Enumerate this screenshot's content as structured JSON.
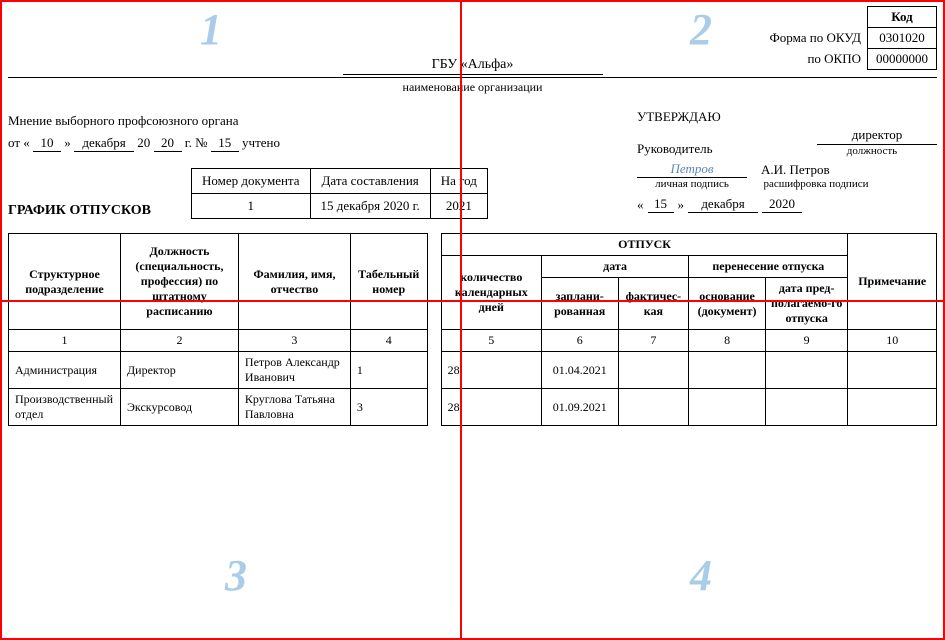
{
  "codes": {
    "header": "Код",
    "okud_label": "Форма по ОКУД",
    "okud": "0301020",
    "okpo_label": "по ОКПО",
    "okpo": "00000000"
  },
  "org": {
    "name": "ГБУ «Альфа»",
    "caption": "наименование организации"
  },
  "union": {
    "title": "Мнение выборного профсоюзного органа",
    "prefix_ot": "от",
    "q1": "«",
    "day": "10",
    "q2": "»",
    "month": "декабря",
    "y20": "20",
    "year": "20",
    "g": "г.",
    "no": "№",
    "num": "15",
    "uchteno": "учтено"
  },
  "approve": {
    "title": "УТВЕРЖДАЮ",
    "ruk": "Руководитель",
    "post": "директор",
    "post_caption": "должность",
    "sign": "Петров",
    "sign_caption": "личная подпись",
    "fio": "А.И. Петров",
    "fio_caption": "расшифровка подписи",
    "q1": "«",
    "day": "15",
    "q2": "»",
    "month": "декабря",
    "year": "2020"
  },
  "doc": {
    "title": "ГРАФИК ОТПУСКОВ",
    "h_num": "Номер документа",
    "h_date": "Дата составления",
    "h_year": "На год",
    "num": "1",
    "date": "15 декабря 2020 г.",
    "year": "2021"
  },
  "table": {
    "h_unit": "Структурное подразделение",
    "h_post": "Должность (специальность, профессия) по штатному расписанию",
    "h_fio": "Фамилия, имя, отчество",
    "h_tab": "Табельный номер",
    "h_vac": "ОТПУСК",
    "h_days": "количество календарных дней",
    "h_date": "дата",
    "h_transfer": "перенесение отпуска",
    "h_plan": "заплани-рованная",
    "h_fact": "фактичес-кая",
    "h_basis": "основание (документ)",
    "h_newdate": "дата пред-полагаемо-го отпуска",
    "h_note": "Примечание",
    "n1": "1",
    "n2": "2",
    "n3": "3",
    "n4": "4",
    "n5": "5",
    "n6": "6",
    "n7": "7",
    "n8": "8",
    "n9": "9",
    "n10": "10",
    "rows": [
      {
        "unit": "Администрация",
        "post": "Директор",
        "fio": "Петров Александр Иванович",
        "tab": "1",
        "days": "28",
        "plan": "01.04.2021",
        "fact": "",
        "basis": "",
        "newdate": "",
        "note": ""
      },
      {
        "unit": "Производственный отдел",
        "post": "Экскурсовод",
        "fio": "Круглова Татьяна Павловна",
        "tab": "3",
        "days": "28",
        "plan": "01.09.2021",
        "fact": "",
        "basis": "",
        "newdate": "",
        "note": ""
      }
    ]
  },
  "quads": {
    "n1": "1",
    "n2": "2",
    "n3": "3",
    "n4": "4"
  }
}
